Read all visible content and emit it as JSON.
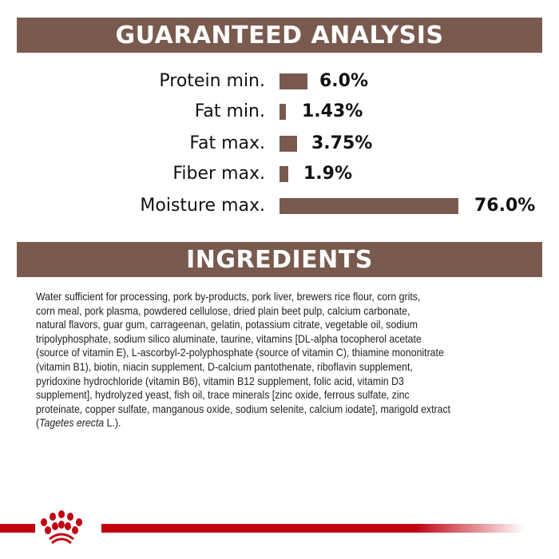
{
  "analysis": {
    "title": "GUARANTEED ANALYSIS",
    "rows": [
      {
        "label": "Protein min.",
        "value": "6.0%",
        "percent": 6.0
      },
      {
        "label": "Fat min.",
        "value": "1.43%",
        "percent": 1.43
      },
      {
        "label": "Fat max.",
        "value": "3.75%",
        "percent": 3.75
      },
      {
        "label": "Fiber max.",
        "value": "1.9%",
        "percent": 1.9
      },
      {
        "label": "Moisture max.",
        "value": "76.0%",
        "percent": 76.0
      }
    ]
  },
  "ingredients": {
    "title": "INGREDIENTS",
    "lines": [
      "Water sufficient for processing, pork by-products, pork liver, brewers rice flour, corn grits,",
      "corn meal, pork plasma, powdered cellulose, dried plain beet pulp, calcium carbonate,",
      "natural flavors, guar gum, carrageenan, gelatin, potassium citrate, vegetable oil, sodium",
      "tripolyphosphate, sodium silico aluminate, taurine, vitamins [DL-alpha tocopherol acetate",
      "(source of vitamin E), L-ascorbyl-2-polyphosphate (source of vitamin C), thiamine mononitrate",
      "(vitamin B1), biotin, niacin supplement, D-calcium pantothenate, riboflavin supplement,",
      "pyridoxine hydrochloride (vitamin B6), vitamin B12 supplement, folic acid, vitamin D3",
      "supplement], hydrolyzed yeast, fish oil, trace minerals [zinc oxide, ferrous sulfate, zinc",
      "proteinate, copper sulfate, manganous oxide, sodium selenite, calcium iodate], marigold extract"
    ],
    "last_line": {
      "open": "(",
      "italic": "Tagetes erecta",
      "close": " L.)."
    }
  },
  "footer": {
    "logo_icon": "royal-canin-crown-icon",
    "brand_color": "#c00010"
  },
  "colors": {
    "banner": "#7a5a4e",
    "bar": "#7a5a4e"
  }
}
